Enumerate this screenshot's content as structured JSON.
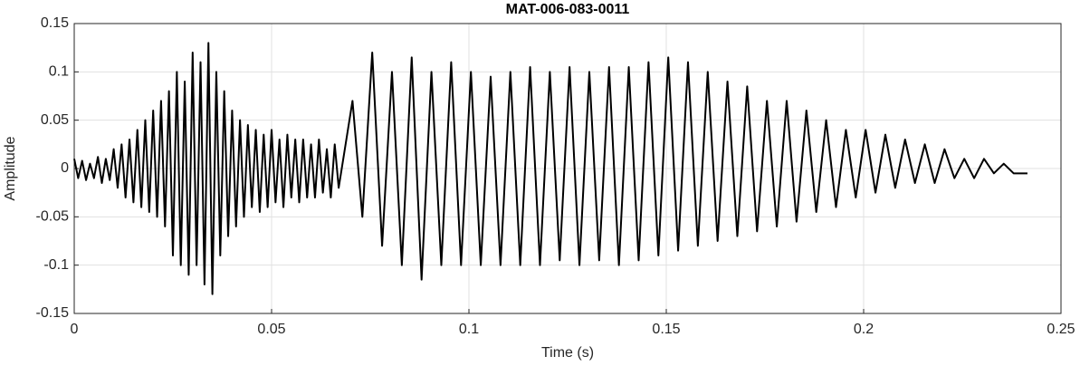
{
  "chart_data": {
    "type": "line",
    "title": "MAT-006-083-0011",
    "xlabel": "Time (s)",
    "ylabel": "Amplitude",
    "xlim": [
      0,
      0.25
    ],
    "xticks": [
      0,
      0.05,
      0.1,
      0.15,
      0.2,
      0.25
    ],
    "ylim": [
      -0.15,
      0.15
    ],
    "yticks": [
      -0.15,
      -0.1,
      -0.05,
      0,
      0.05,
      0.1,
      0.15
    ],
    "grid": true,
    "series": [
      {
        "color": "#000000",
        "x": [
          0,
          0.001,
          0.002,
          0.003,
          0.004,
          0.005,
          0.006,
          0.007,
          0.008,
          0.009,
          0.01,
          0.011,
          0.012,
          0.013,
          0.014,
          0.015,
          0.016,
          0.017,
          0.018,
          0.019,
          0.02,
          0.021,
          0.022,
          0.023,
          0.024,
          0.025,
          0.026,
          0.027,
          0.028,
          0.029,
          0.03,
          0.031,
          0.032,
          0.033,
          0.034,
          0.035,
          0.036,
          0.037,
          0.038,
          0.039,
          0.04,
          0.041,
          0.042,
          0.043,
          0.044,
          0.045,
          0.046,
          0.047,
          0.048,
          0.049,
          0.05,
          0.051,
          0.052,
          0.053,
          0.054,
          0.055,
          0.056,
          0.057,
          0.058,
          0.059,
          0.06,
          0.061,
          0.062,
          0.063,
          0.064,
          0.065,
          0.066,
          0.067,
          0.0705,
          0.073,
          0.0755,
          0.078,
          0.0805,
          0.083,
          0.0855,
          0.088,
          0.0905,
          0.093,
          0.0955,
          0.098,
          0.1005,
          0.103,
          0.1055,
          0.108,
          0.1105,
          0.113,
          0.1155,
          0.118,
          0.1205,
          0.123,
          0.1255,
          0.128,
          0.1305,
          0.133,
          0.1355,
          0.138,
          0.1405,
          0.143,
          0.1455,
          0.148,
          0.1505,
          0.153,
          0.1555,
          0.158,
          0.1605,
          0.163,
          0.1655,
          0.168,
          0.1705,
          0.173,
          0.1755,
          0.178,
          0.1805,
          0.183,
          0.1855,
          0.188,
          0.1905,
          0.193,
          0.1955,
          0.198,
          0.2005,
          0.203,
          0.2055,
          0.208,
          0.2105,
          0.213,
          0.2155,
          0.218,
          0.2205,
          0.223,
          0.2255,
          0.228,
          0.2305,
          0.233,
          0.2355,
          0.238,
          0.2415
        ],
        "values": [
          0.01,
          -0.01,
          0.008,
          -0.012,
          0.005,
          -0.01,
          0.012,
          -0.015,
          0.01,
          -0.012,
          0.02,
          -0.02,
          0.025,
          -0.03,
          0.03,
          -0.035,
          0.04,
          -0.04,
          0.05,
          -0.045,
          0.06,
          -0.05,
          0.07,
          -0.06,
          0.08,
          -0.09,
          0.1,
          -0.1,
          0.09,
          -0.11,
          0.12,
          -0.1,
          0.11,
          -0.12,
          0.13,
          -0.13,
          0.1,
          -0.09,
          0.08,
          -0.07,
          0.06,
          -0.06,
          0.05,
          -0.05,
          0.045,
          -0.04,
          0.04,
          -0.045,
          0.035,
          -0.04,
          0.04,
          -0.035,
          0.03,
          -0.04,
          0.035,
          -0.03,
          0.03,
          -0.035,
          0.03,
          -0.03,
          0.025,
          -0.03,
          0.03,
          -0.025,
          0.02,
          -0.03,
          0.025,
          -0.02,
          0.07,
          -0.05,
          0.12,
          -0.08,
          0.1,
          -0.1,
          0.115,
          -0.115,
          0.1,
          -0.1,
          0.11,
          -0.1,
          0.1,
          -0.1,
          0.095,
          -0.1,
          0.1,
          -0.1,
          0.105,
          -0.1,
          0.1,
          -0.095,
          0.105,
          -0.1,
          0.1,
          -0.095,
          0.105,
          -0.1,
          0.105,
          -0.095,
          0.11,
          -0.09,
          0.115,
          -0.085,
          0.11,
          -0.08,
          0.1,
          -0.075,
          0.09,
          -0.07,
          0.085,
          -0.065,
          0.07,
          -0.06,
          0.07,
          -0.055,
          0.06,
          -0.045,
          0.05,
          -0.04,
          0.04,
          -0.03,
          0.04,
          -0.025,
          0.035,
          -0.02,
          0.03,
          -0.015,
          0.025,
          -0.015,
          0.02,
          -0.01,
          0.01,
          -0.01,
          0.01,
          -0.005,
          0.005,
          -0.005,
          -0.005
        ]
      }
    ]
  }
}
